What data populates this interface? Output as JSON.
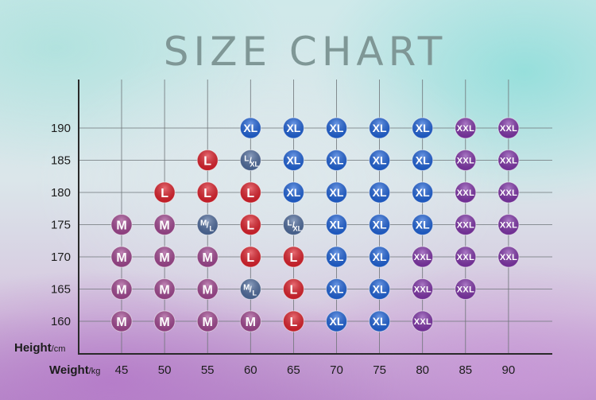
{
  "title": "SIZE CHART",
  "chart_data": {
    "type": "table",
    "title": "SIZE CHART",
    "xlabel": "Weight",
    "xunit": "/kg",
    "ylabel": "Height",
    "yunit": "/cm",
    "x": [
      45,
      50,
      55,
      60,
      65,
      70,
      75,
      80,
      85,
      90
    ],
    "y": [
      160,
      165,
      170,
      175,
      180,
      185,
      190
    ],
    "grid": true,
    "cells": [
      {
        "weight": 60,
        "height": 190,
        "size": "XL"
      },
      {
        "weight": 65,
        "height": 190,
        "size": "XL"
      },
      {
        "weight": 70,
        "height": 190,
        "size": "XL"
      },
      {
        "weight": 75,
        "height": 190,
        "size": "XL"
      },
      {
        "weight": 80,
        "height": 190,
        "size": "XL"
      },
      {
        "weight": 85,
        "height": 190,
        "size": "XXL"
      },
      {
        "weight": 90,
        "height": 190,
        "size": "XXL"
      },
      {
        "weight": 55,
        "height": 185,
        "size": "L"
      },
      {
        "weight": 60,
        "height": 185,
        "size": "L/XL"
      },
      {
        "weight": 65,
        "height": 185,
        "size": "XL"
      },
      {
        "weight": 70,
        "height": 185,
        "size": "XL"
      },
      {
        "weight": 75,
        "height": 185,
        "size": "XL"
      },
      {
        "weight": 80,
        "height": 185,
        "size": "XL"
      },
      {
        "weight": 85,
        "height": 185,
        "size": "XXL"
      },
      {
        "weight": 90,
        "height": 185,
        "size": "XXL"
      },
      {
        "weight": 50,
        "height": 180,
        "size": "L"
      },
      {
        "weight": 55,
        "height": 180,
        "size": "L"
      },
      {
        "weight": 60,
        "height": 180,
        "size": "L"
      },
      {
        "weight": 65,
        "height": 180,
        "size": "XL"
      },
      {
        "weight": 70,
        "height": 180,
        "size": "XL"
      },
      {
        "weight": 75,
        "height": 180,
        "size": "XL"
      },
      {
        "weight": 80,
        "height": 180,
        "size": "XL"
      },
      {
        "weight": 85,
        "height": 180,
        "size": "XXL"
      },
      {
        "weight": 90,
        "height": 180,
        "size": "XXL"
      },
      {
        "weight": 45,
        "height": 175,
        "size": "M"
      },
      {
        "weight": 50,
        "height": 175,
        "size": "M"
      },
      {
        "weight": 55,
        "height": 175,
        "size": "M/L"
      },
      {
        "weight": 60,
        "height": 175,
        "size": "L"
      },
      {
        "weight": 65,
        "height": 175,
        "size": "L/XL"
      },
      {
        "weight": 70,
        "height": 175,
        "size": "XL"
      },
      {
        "weight": 75,
        "height": 175,
        "size": "XL"
      },
      {
        "weight": 80,
        "height": 175,
        "size": "XL"
      },
      {
        "weight": 85,
        "height": 175,
        "size": "XXL"
      },
      {
        "weight": 90,
        "height": 175,
        "size": "XXL"
      },
      {
        "weight": 45,
        "height": 170,
        "size": "M"
      },
      {
        "weight": 50,
        "height": 170,
        "size": "M"
      },
      {
        "weight": 55,
        "height": 170,
        "size": "M"
      },
      {
        "weight": 60,
        "height": 170,
        "size": "L"
      },
      {
        "weight": 65,
        "height": 170,
        "size": "L"
      },
      {
        "weight": 70,
        "height": 170,
        "size": "XL"
      },
      {
        "weight": 75,
        "height": 170,
        "size": "XL"
      },
      {
        "weight": 80,
        "height": 170,
        "size": "XXL"
      },
      {
        "weight": 85,
        "height": 170,
        "size": "XXL"
      },
      {
        "weight": 90,
        "height": 170,
        "size": "XXL"
      },
      {
        "weight": 45,
        "height": 165,
        "size": "M"
      },
      {
        "weight": 50,
        "height": 165,
        "size": "M"
      },
      {
        "weight": 55,
        "height": 165,
        "size": "M"
      },
      {
        "weight": 60,
        "height": 165,
        "size": "M/L"
      },
      {
        "weight": 65,
        "height": 165,
        "size": "L"
      },
      {
        "weight": 70,
        "height": 165,
        "size": "XL"
      },
      {
        "weight": 75,
        "height": 165,
        "size": "XL"
      },
      {
        "weight": 80,
        "height": 165,
        "size": "XXL"
      },
      {
        "weight": 85,
        "height": 165,
        "size": "XXL"
      },
      {
        "weight": 45,
        "height": 160,
        "size": "M"
      },
      {
        "weight": 50,
        "height": 160,
        "size": "M"
      },
      {
        "weight": 55,
        "height": 160,
        "size": "M"
      },
      {
        "weight": 60,
        "height": 160,
        "size": "M"
      },
      {
        "weight": 65,
        "height": 160,
        "size": "L"
      },
      {
        "weight": 70,
        "height": 160,
        "size": "XL"
      },
      {
        "weight": 75,
        "height": 160,
        "size": "XL"
      },
      {
        "weight": 80,
        "height": 160,
        "size": "XXL"
      }
    ],
    "colors": {
      "M": "#a0458f",
      "L": "#dd1f2a",
      "XL": "#1e62d8",
      "XXL": "#7f33a8",
      "M/L": "#4d6a9c",
      "L/XL": "#4d6a9c"
    }
  }
}
